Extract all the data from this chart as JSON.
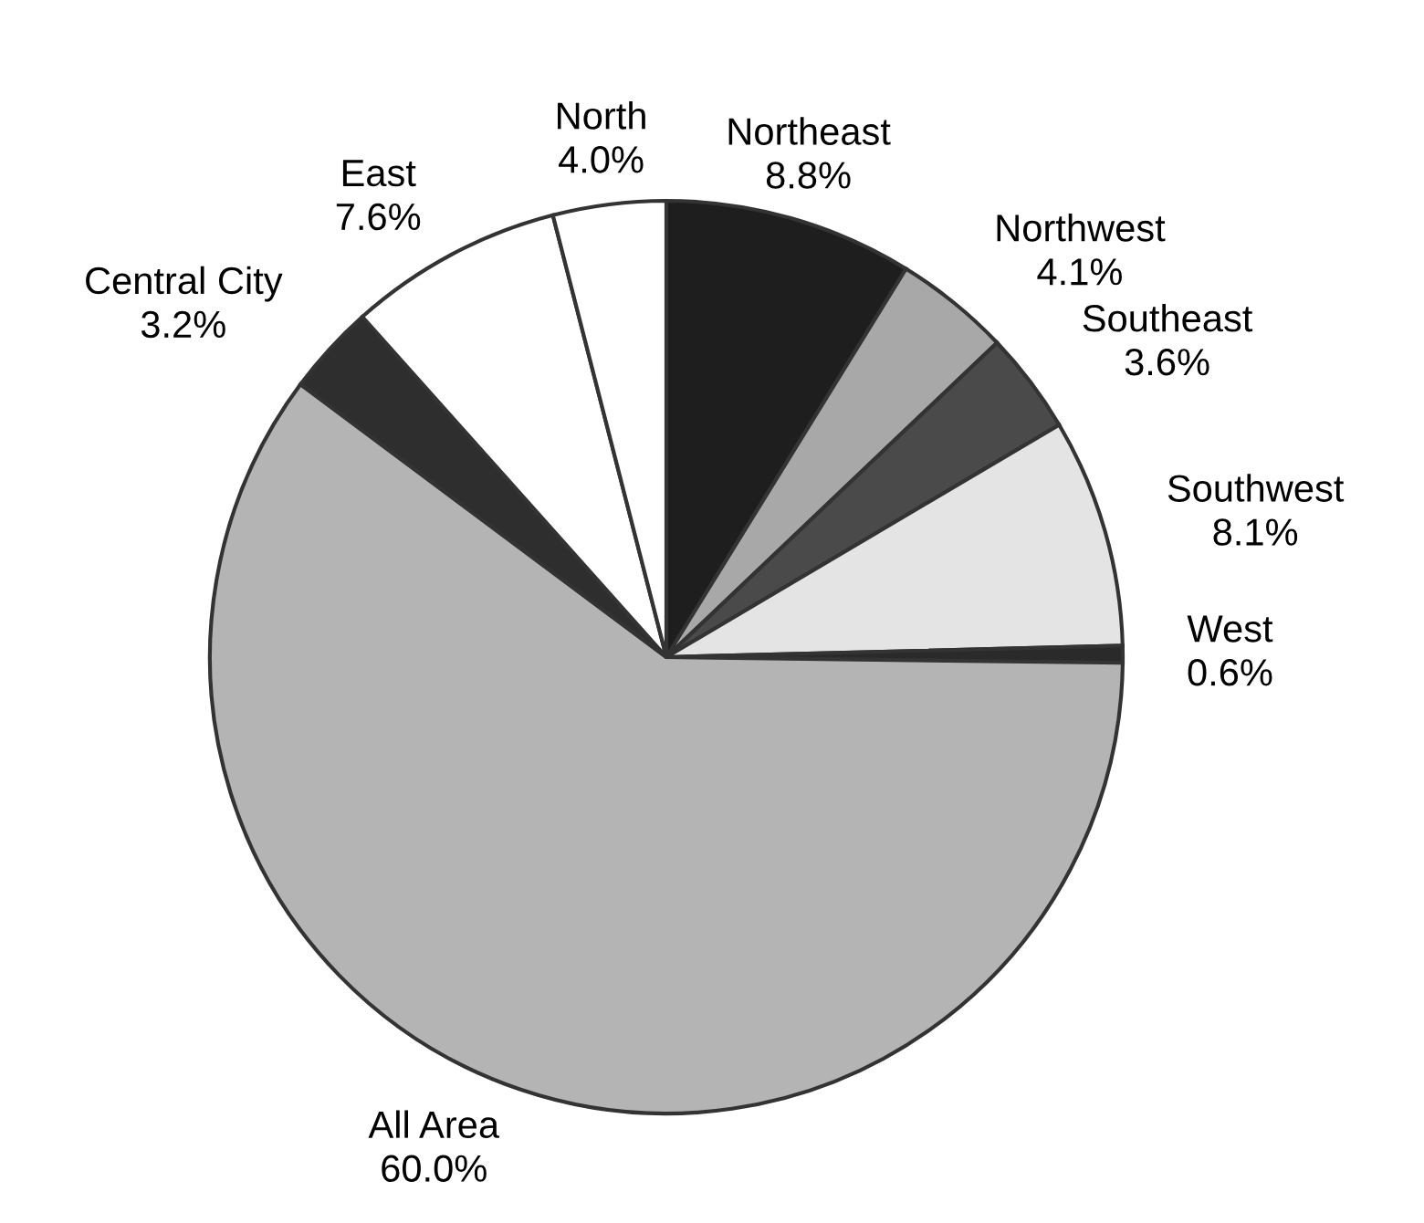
{
  "chart_data": {
    "type": "pie",
    "categories": [
      "Northeast",
      "Northwest",
      "Southeast",
      "Southwest",
      "West",
      "All Area",
      "Central City",
      "East",
      "North"
    ],
    "values": [
      8.8,
      4.1,
      3.6,
      8.1,
      0.6,
      60.0,
      3.2,
      7.6,
      4.0
    ],
    "value_labels": [
      "8.8%",
      "4.1%",
      "3.6%",
      "8.1%",
      "0.6%",
      "60.0%",
      "3.2%",
      "7.6%",
      "4.0%"
    ],
    "colors": [
      "#1e1e1e",
      "#a8a8a8",
      "#4a4a4a",
      "#e4e4e4",
      "#2a2a2a",
      "#b4b4b4",
      "#2e2e2e",
      "#ffffff",
      "#ffffff"
    ]
  }
}
